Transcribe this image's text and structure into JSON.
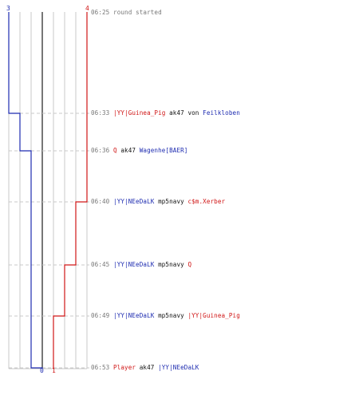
{
  "axis": {
    "top_left_label": "3",
    "top_right_label": "4",
    "bottom_labels": [
      "0",
      "1"
    ]
  },
  "colors": {
    "blue_team": "#1d2bb0",
    "red_team": "#d01616",
    "gridline": "#c8c8c8",
    "center_line": "#777777",
    "dash": "#c8c8c8",
    "time": "#777777"
  },
  "events": [
    {
      "time": "06:25",
      "parts": [
        {
          "text": "round started",
          "color": "grey"
        }
      ]
    },
    {
      "time": "06:33",
      "parts": [
        {
          "text": "|YY|Guinea_Pig",
          "color": "red"
        },
        {
          "text": " ak47 von ",
          "color": "black"
        },
        {
          "text": "Feilkloben",
          "color": "blue"
        }
      ]
    },
    {
      "time": "06:36",
      "parts": [
        {
          "text": "Q",
          "color": "red"
        },
        {
          "text": " ak47 ",
          "color": "black"
        },
        {
          "text": "Wagenhe[BAER]",
          "color": "blue"
        }
      ]
    },
    {
      "time": "06:40",
      "parts": [
        {
          "text": "|YY|NEeDaLK",
          "color": "blue"
        },
        {
          "text": " mp5navy ",
          "color": "black"
        },
        {
          "text": "c$m.Xerber",
          "color": "red"
        }
      ]
    },
    {
      "time": "06:45",
      "parts": [
        {
          "text": "|YY|NEeDaLK",
          "color": "blue"
        },
        {
          "text": " mp5navy ",
          "color": "black"
        },
        {
          "text": "Q",
          "color": "red"
        }
      ]
    },
    {
      "time": "06:49",
      "parts": [
        {
          "text": "|YY|NEeDaLK",
          "color": "blue"
        },
        {
          "text": " mp5navy ",
          "color": "black"
        },
        {
          "text": "|YY|Guinea_Pig",
          "color": "red"
        }
      ]
    },
    {
      "time": "06:53",
      "parts": [
        {
          "text": "Player",
          "color": "red"
        },
        {
          "text": " ak47 ",
          "color": "black"
        },
        {
          "text": "|YY|NEeDaLK",
          "color": "blue"
        }
      ]
    }
  ],
  "team_counts": {
    "blue": [
      3,
      2,
      1,
      1,
      1,
      1,
      0
    ],
    "red": [
      4,
      4,
      4,
      3,
      2,
      1,
      1
    ]
  }
}
